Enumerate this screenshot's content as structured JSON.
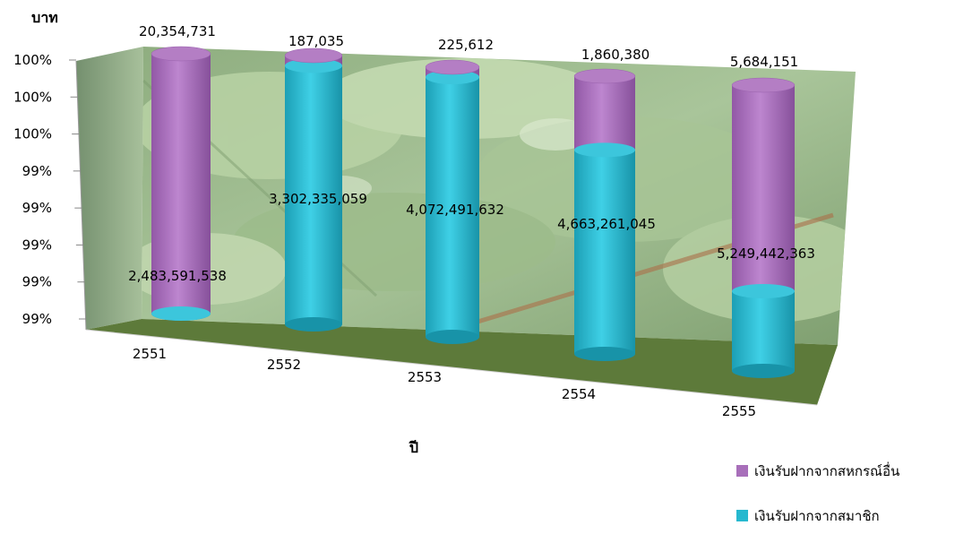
{
  "chart_data": {
    "type": "bar",
    "stacked": "percent",
    "style": "3d-cylinder",
    "ylabel": "บาท",
    "xlabel": "ปี",
    "categories": [
      "2551",
      "2552",
      "2553",
      "2554",
      "2555"
    ],
    "y_tick_labels": [
      "99%",
      "99%",
      "99%",
      "99%",
      "99%",
      "100%",
      "100%",
      "100%"
    ],
    "series": [
      {
        "name": "เงินรับฝากจากสมาชิก",
        "color": "#26b8cf",
        "values": [
          2483591538,
          3302335059,
          4072491632,
          4663261045,
          5249442363
        ],
        "labels": [
          "2,483,591,538",
          "3,302,335,059",
          "4,072,491,632",
          "4,663,261,045",
          "5,249,442,363"
        ]
      },
      {
        "name": "เงินรับฝากจากสหกรณ์อื่น",
        "color": "#a86fba",
        "values": [
          20354731,
          187035,
          225612,
          1860380,
          5684151
        ],
        "labels": [
          "20,354,731",
          "187,035",
          "225,612",
          "1,860,380",
          "5,684,151"
        ]
      }
    ],
    "legend": "bottom-right",
    "grid": false,
    "background": "photo-leaves"
  }
}
